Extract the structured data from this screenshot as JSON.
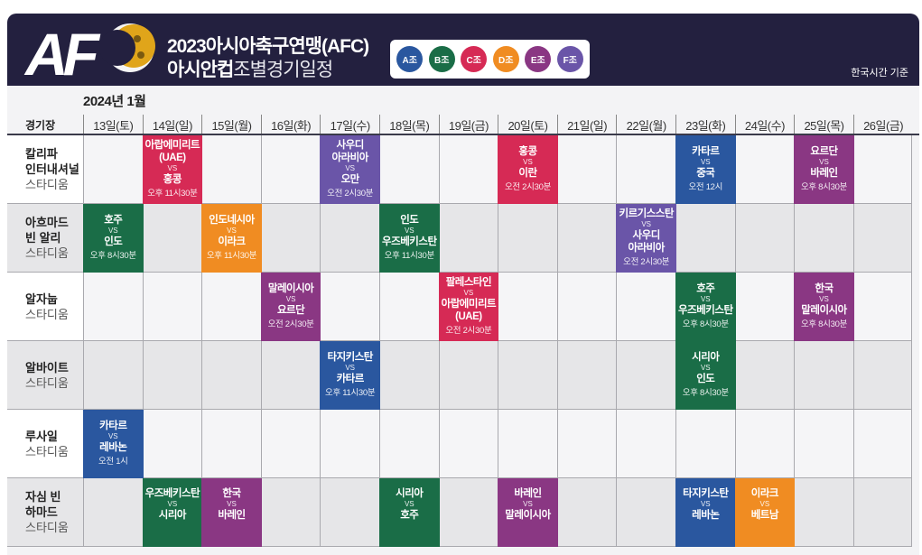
{
  "header": {
    "logo_text": "AFC",
    "title_line1": "2023아시아축구연맹(AFC)",
    "title_line2_bold": "아시안컵",
    "title_line2_light": "조별경기일정",
    "timezone_note": "한국시간 기준",
    "groups": [
      {
        "label": "A조",
        "color": "#2a579f"
      },
      {
        "label": "B조",
        "color": "#1a6d47"
      },
      {
        "label": "C조",
        "color": "#d62a55"
      },
      {
        "label": "D조",
        "color": "#f08c22"
      },
      {
        "label": "E조",
        "color": "#8a3783"
      },
      {
        "label": "F조",
        "color": "#6a55a8"
      }
    ]
  },
  "schedule": {
    "month": "2024년 1월",
    "venue_header": "경기장",
    "days": [
      "13일(토)",
      "14일(일)",
      "15일(월)",
      "16일(화)",
      "17일(수)",
      "18일(목)",
      "19일(금)",
      "20일(토)",
      "21일(일)",
      "22일(월)",
      "23일(화)",
      "24일(수)",
      "25일(목)",
      "26일(금)"
    ],
    "venues": [
      {
        "name": "칼리파\n인터내셔널",
        "sub": "스타디움"
      },
      {
        "name": "아흐마드\n빈 알리",
        "sub": "스타디움"
      },
      {
        "name": "알자눕",
        "sub": "스타디움"
      },
      {
        "name": "알바이트",
        "sub": "스타디움"
      },
      {
        "name": "루사일",
        "sub": "스타디움"
      },
      {
        "name": "자심 빈\n하마드",
        "sub": "스타디움"
      }
    ],
    "vs_label": "VS",
    "matches": [
      {
        "venue": 0,
        "day": 1,
        "group": "C",
        "home": "아랍에미리트\n(UAE)",
        "away": "홍콩",
        "time": "오후 11시30분"
      },
      {
        "venue": 0,
        "day": 4,
        "group": "F",
        "home": "사우디\n아라비아",
        "away": "오만",
        "time": "오전 2시30분"
      },
      {
        "venue": 0,
        "day": 7,
        "group": "C",
        "home": "홍콩",
        "away": "이란",
        "time": "오전 2시30분"
      },
      {
        "venue": 0,
        "day": 10,
        "group": "A",
        "home": "카타르",
        "away": "중국",
        "time": "오전 12시"
      },
      {
        "venue": 0,
        "day": 12,
        "group": "E",
        "home": "요르단",
        "away": "바레인",
        "time": "오후 8시30분"
      },
      {
        "venue": 1,
        "day": 0,
        "group": "B",
        "home": "호주",
        "away": "인도",
        "time": "오후 8시30분"
      },
      {
        "venue": 1,
        "day": 2,
        "group": "D",
        "home": "인도네시아",
        "away": "이라크",
        "time": "오후 11시30분"
      },
      {
        "venue": 1,
        "day": 5,
        "group": "B",
        "home": "인도",
        "away": "우즈베키스탄",
        "time": "오후 11시30분"
      },
      {
        "venue": 1,
        "day": 9,
        "group": "F",
        "home": "키르기스스탄",
        "away": "사우디\n아라비아",
        "time": "오전 2시30분"
      },
      {
        "venue": 2,
        "day": 3,
        "group": "E",
        "home": "말레이시아",
        "away": "요르단",
        "time": "오전 2시30분"
      },
      {
        "venue": 2,
        "day": 6,
        "group": "C",
        "home": "팔레스타인",
        "away": "아랍에미리트\n(UAE)",
        "time": "오전 2시30분"
      },
      {
        "venue": 2,
        "day": 10,
        "group": "B",
        "home": "호주",
        "away": "우즈베키스탄",
        "time": "오후 8시30분"
      },
      {
        "venue": 2,
        "day": 12,
        "group": "E",
        "home": "한국",
        "away": "말레이시아",
        "time": "오후 8시30분"
      },
      {
        "venue": 3,
        "day": 4,
        "group": "A",
        "home": "타지키스탄",
        "away": "카타르",
        "time": "오후 11시30분"
      },
      {
        "venue": 3,
        "day": 10,
        "group": "B",
        "home": "시리아",
        "away": "인도",
        "time": "오후 8시30분"
      },
      {
        "venue": 4,
        "day": 0,
        "group": "A",
        "home": "카타르",
        "away": "레바논",
        "time": "오전 1시"
      },
      {
        "venue": 5,
        "day": 1,
        "group": "B",
        "home": "우즈베키스탄",
        "away": "시리아",
        "time": ""
      },
      {
        "venue": 5,
        "day": 2,
        "group": "E",
        "home": "한국",
        "away": "바레인",
        "time": ""
      },
      {
        "venue": 5,
        "day": 5,
        "group": "B",
        "home": "시리아",
        "away": "호주",
        "time": ""
      },
      {
        "venue": 5,
        "day": 7,
        "group": "E",
        "home": "바레인",
        "away": "말레이시아",
        "time": ""
      },
      {
        "venue": 5,
        "day": 10,
        "group": "A",
        "home": "타지키스탄",
        "away": "레바논",
        "time": ""
      },
      {
        "venue": 5,
        "day": 11,
        "group": "D",
        "home": "이라크",
        "away": "베트남",
        "time": ""
      }
    ]
  }
}
